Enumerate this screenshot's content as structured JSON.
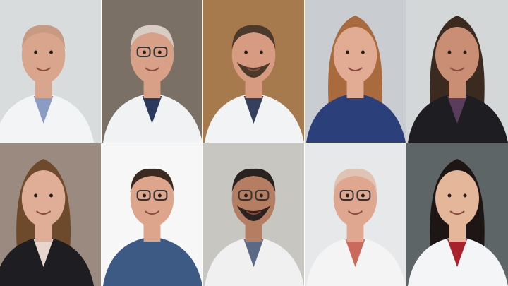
{
  "photos": [
    {
      "subject": "portrait-man-bald-white-coat",
      "background": "#d9dcdc",
      "skin": "#d9a58c",
      "hair": "#c99a82",
      "clothing": "#f3f4f6",
      "accent": "#8a9bc4",
      "glasses": false,
      "beard": false
    },
    {
      "subject": "portrait-man-glasses-white-coat",
      "background": "#7a7066",
      "skin": "#d7a087",
      "hair": "#d8cdc4",
      "clothing": "#f1f2f4",
      "accent": "#2b3a5c",
      "glasses": true,
      "beard": false
    },
    {
      "subject": "portrait-man-beard-white-coat",
      "background": "#a77a4e",
      "skin": "#d79b82",
      "hair": "#4b3a2c",
      "clothing": "#f2f3f5",
      "accent": "#34405e",
      "glasses": false,
      "beard": true
    },
    {
      "subject": "portrait-woman-long-hair",
      "background": "#c9ccd0",
      "skin": "#e2ab93",
      "hair": "#a96b3e",
      "clothing": "#2b3f7a",
      "accent": "#2b3f7a",
      "glasses": false,
      "beard": false
    },
    {
      "subject": "portrait-woman-curly-hair-dark-jacket",
      "background": "#d4d7d8",
      "skin": "#c98e74",
      "hair": "#3a2a20",
      "clothing": "#1e1e22",
      "accent": "#5a3d5c",
      "glasses": false,
      "beard": false
    },
    {
      "subject": "portrait-woman-dark-blazer",
      "background": "#9b8a80",
      "skin": "#e0ae96",
      "hair": "#6e4a2c",
      "clothing": "#1d1d22",
      "accent": "#e8d6cc",
      "glasses": false,
      "beard": false
    },
    {
      "subject": "portrait-man-glasses-blue-shirt",
      "background": "#f7f7f7",
      "skin": "#dca58c",
      "hair": "#3b2a20",
      "clothing": "#3d5a85",
      "accent": "#3d5a85",
      "glasses": true,
      "beard": false
    },
    {
      "subject": "portrait-man-mustache-glasses-white-coat",
      "background": "#c8c6c0",
      "skin": "#b57d62",
      "hair": "#2a2220",
      "clothing": "#f0f0f0",
      "accent": "#5a6a84",
      "glasses": true,
      "beard": true
    },
    {
      "subject": "portrait-man-bald-tinted-glasses-white-coat",
      "background": "#e6e8ea",
      "skin": "#dfa790",
      "hair": "#e0c3b3",
      "clothing": "#f4f4f5",
      "accent": "#c96a5c",
      "glasses": true,
      "beard": false
    },
    {
      "subject": "portrait-woman-white-coat-red-top",
      "background": "#5d6566",
      "skin": "#e4b69a",
      "hair": "#1d1614",
      "clothing": "#f4f5f7",
      "accent": "#a8222e",
      "glasses": false,
      "beard": false
    }
  ]
}
